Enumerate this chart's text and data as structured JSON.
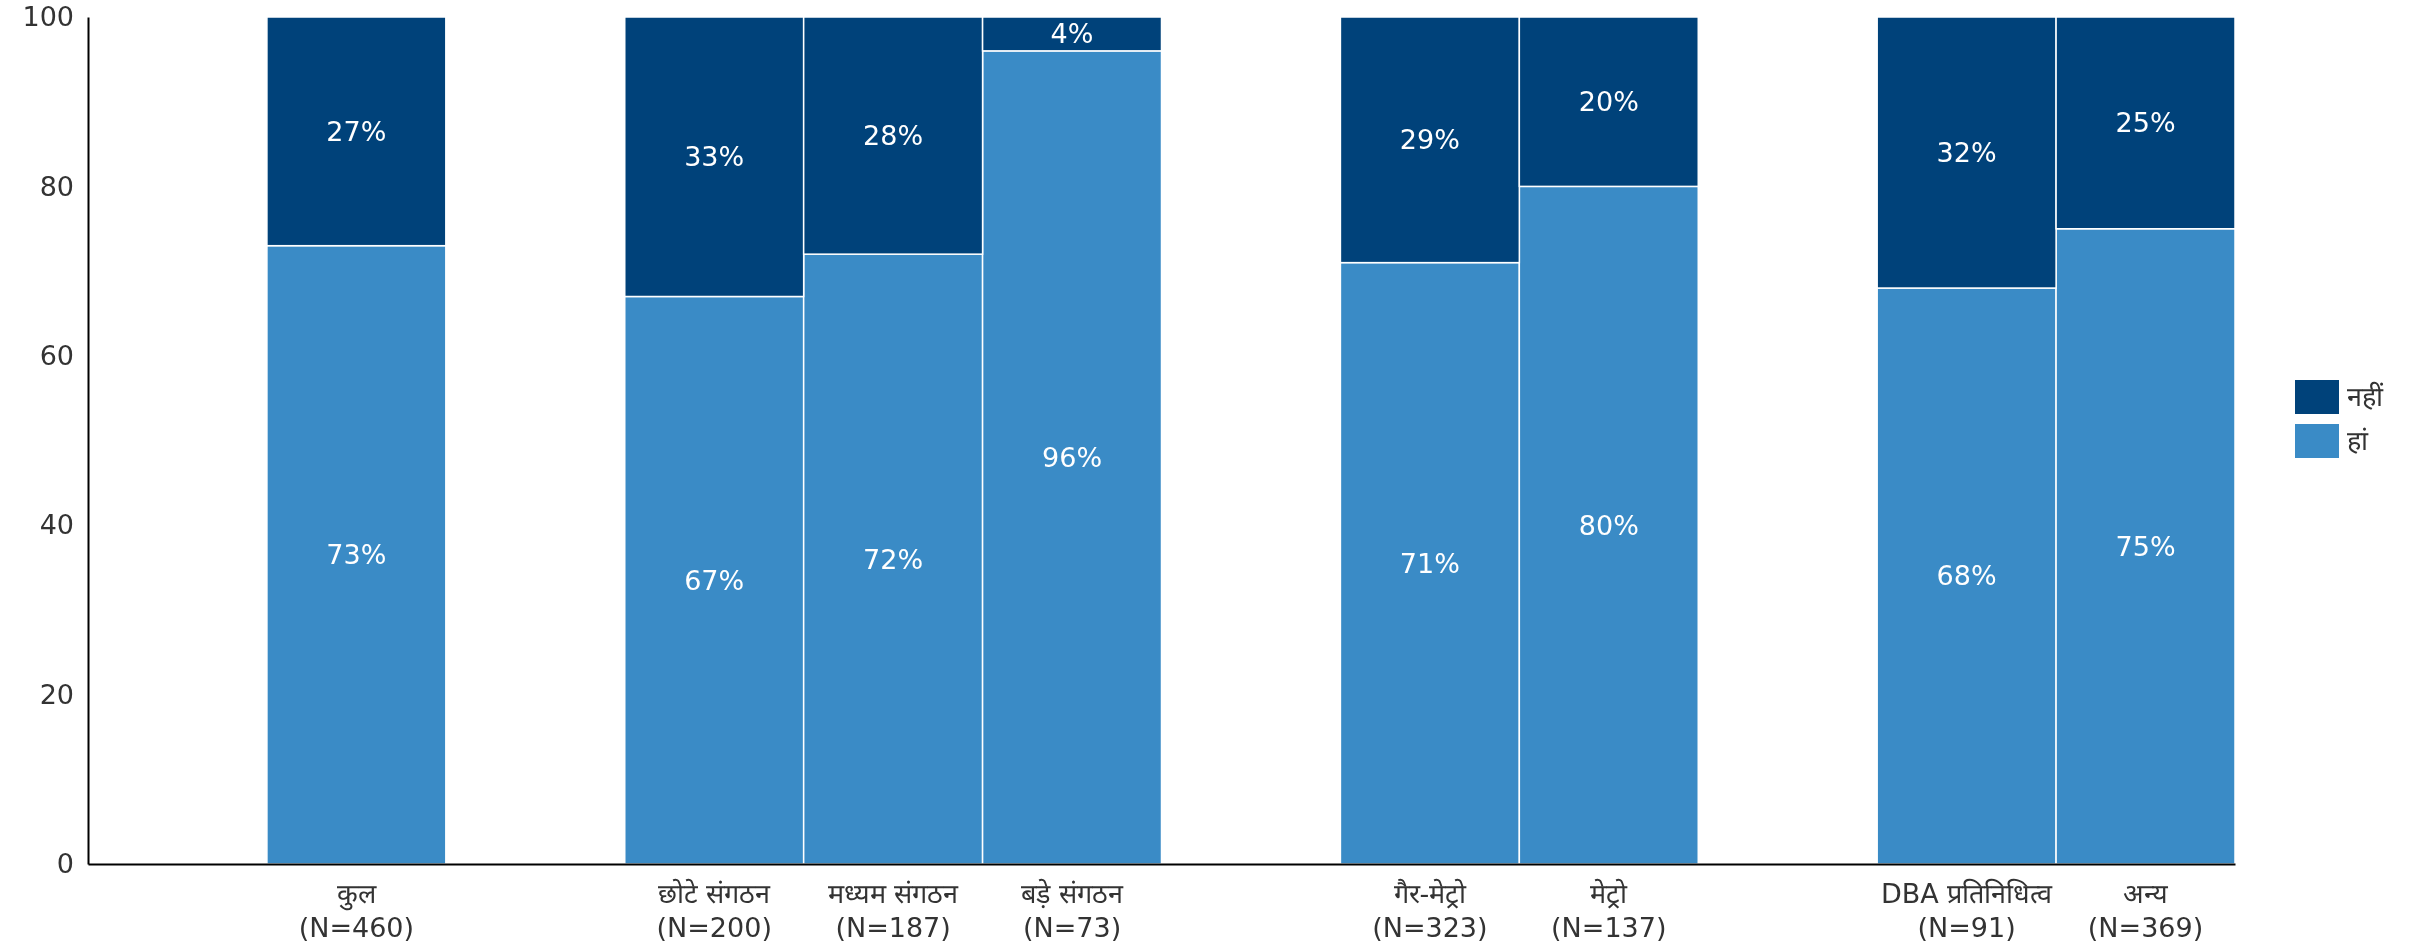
{
  "chart_data": {
    "type": "bar",
    "stacked": true,
    "categories": [
      null,
      "कुल\n(N=460)",
      null,
      "छोटे संगठन\n(N=200)",
      "मध्यम संगठन\n(N=187)",
      "बड़े संगठन\n(N=73)",
      null,
      "गैर-मेट्रो\n(N=323)",
      "मेट्रो\n(N=137)",
      null,
      "DBA प्रतिनिधित्व\n(N=91)",
      "अन्य\n(N=369)"
    ],
    "series": [
      {
        "name": "हां",
        "color": "#3a8bc6",
        "values": [
          null,
          73,
          null,
          67,
          72,
          96,
          null,
          71,
          80,
          null,
          68,
          75
        ],
        "value_labels": [
          null,
          "73%",
          null,
          "67%",
          "72%",
          "96%",
          null,
          "71%",
          "80%",
          null,
          "68%",
          "75%"
        ]
      },
      {
        "name": "नहीं",
        "color": "#00427a",
        "values": [
          null,
          27,
          null,
          33,
          28,
          4,
          null,
          29,
          20,
          null,
          32,
          25
        ],
        "value_labels": [
          null,
          "27%",
          null,
          "33%",
          "28%",
          "4%",
          null,
          "29%",
          "20%",
          null,
          "32%",
          "25%"
        ]
      }
    ],
    "ylim": [
      0,
      100
    ],
    "yticks": [
      0,
      20,
      40,
      60,
      80,
      100
    ],
    "grid": false,
    "legend": "right"
  }
}
